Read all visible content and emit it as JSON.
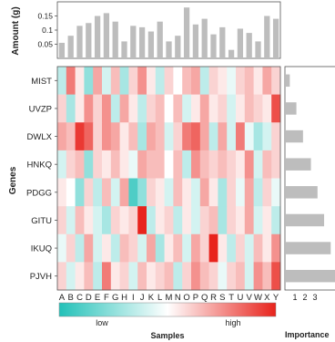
{
  "chart_data": [
    {
      "type": "bar",
      "panel": "top",
      "ylabel": "Amount (g)",
      "ylim": [
        0,
        0.2
      ],
      "yticks": [
        0.05,
        0.1,
        0.15
      ],
      "ytick_labels": [
        "0.05",
        "0.1",
        "0.15"
      ],
      "categories": [
        "A",
        "B",
        "C",
        "D",
        "E",
        "F",
        "G",
        "H",
        "I",
        "J",
        "K",
        "L",
        "M",
        "N",
        "O",
        "P",
        "Q",
        "R",
        "S",
        "T",
        "U",
        "V",
        "W",
        "X",
        "Y"
      ],
      "values": [
        0.055,
        0.08,
        0.115,
        0.125,
        0.15,
        0.16,
        0.13,
        0.06,
        0.115,
        0.11,
        0.095,
        0.13,
        0.06,
        0.08,
        0.18,
        0.12,
        0.14,
        0.085,
        0.11,
        0.03,
        0.105,
        0.09,
        0.06,
        0.15,
        0.14
      ],
      "bar_color": "#bdbdbd"
    },
    {
      "type": "heatmap",
      "panel": "main",
      "xlabel": "Samples",
      "ylabel": "Genes",
      "columns": [
        "A",
        "B",
        "C",
        "D",
        "E",
        "F",
        "G",
        "H",
        "I",
        "J",
        "K",
        "L",
        "M",
        "N",
        "O",
        "P",
        "Q",
        "R",
        "S",
        "T",
        "U",
        "V",
        "W",
        "X",
        "Y"
      ],
      "rows": [
        "MIST",
        "UVZP",
        "DWLX",
        "HNKQ",
        "PDGG",
        "GITU",
        "IKUQ",
        "PJVH"
      ],
      "colorbar": {
        "low_label": "low",
        "high_label": "high",
        "low_color": "#22c1b8",
        "mid_color": "#ffffff",
        "high_color": "#e8231c"
      },
      "values": [
        [
          -0.3,
          0.6,
          0.1,
          -0.5,
          0.4,
          -0.2,
          0.3,
          -0.4,
          0.2,
          0.5,
          0.1,
          -0.3,
          0.2,
          0.0,
          0.3,
          0.4,
          -0.3,
          0.2,
          0.1,
          -0.1,
          0.2,
          0.3,
          0.1,
          0.4,
          0.2
        ],
        [
          0.2,
          -0.4,
          0.1,
          0.5,
          0.2,
          0.5,
          -0.3,
          0.4,
          0.1,
          -0.3,
          0.2,
          0.3,
          0.0,
          0.3,
          -0.2,
          0.1,
          0.4,
          0.1,
          0.2,
          -0.2,
          0.1,
          0.3,
          0.2,
          0.1,
          0.8
        ],
        [
          0.4,
          0.3,
          0.9,
          0.7,
          0.2,
          0.5,
          0.4,
          0.1,
          0.3,
          -0.4,
          0.4,
          0.3,
          -0.2,
          0.2,
          0.6,
          0.7,
          0.4,
          -0.3,
          0.4,
          -0.2,
          0.6,
          -0.1,
          -0.4,
          -0.2,
          0.2
        ],
        [
          -0.2,
          0.2,
          0.3,
          -0.5,
          0.2,
          0.1,
          0.3,
          0.1,
          -0.1,
          0.4,
          0.3,
          0.3,
          0.0,
          0.3,
          -0.3,
          0.5,
          0.3,
          0.2,
          0.3,
          0.2,
          0.1,
          0.5,
          -0.2,
          0.3,
          0.2
        ],
        [
          0.1,
          0.0,
          -0.5,
          0.2,
          -0.3,
          0.3,
          -0.2,
          0.4,
          -0.8,
          -0.5,
          0.2,
          0.1,
          -0.2,
          0.3,
          0.1,
          -0.2,
          0.4,
          0.1,
          -0.4,
          0.2,
          -0.1,
          0.4,
          -0.3,
          0.2,
          -0.1
        ],
        [
          0.2,
          -0.2,
          0.3,
          0.1,
          -0.2,
          -0.4,
          0.2,
          0.1,
          0.2,
          1.0,
          -0.3,
          0.1,
          0.2,
          -0.3,
          0.1,
          -0.2,
          0.2,
          0.3,
          -0.4,
          0.2,
          0.1,
          0.4,
          -0.2,
          0.1,
          -0.3
        ],
        [
          -0.1,
          0.2,
          -0.3,
          0.4,
          -0.2,
          0.1,
          -0.3,
          0.3,
          0.2,
          -0.2,
          0.4,
          -0.4,
          0.1,
          0.3,
          -0.2,
          0.4,
          0.2,
          1.0,
          0.1,
          -0.3,
          0.2,
          -0.2,
          0.3,
          0.1,
          0.5
        ],
        [
          0.2,
          -0.2,
          0.1,
          0.3,
          -0.3,
          0.6,
          0.1,
          0.2,
          -0.2,
          0.3,
          0.1,
          0.2,
          0.3,
          -0.3,
          0.2,
          0.5,
          0.3,
          0.2,
          -0.1,
          0.2,
          0.3,
          -0.2,
          0.5,
          0.3,
          0.8
        ]
      ]
    },
    {
      "type": "bar",
      "panel": "right",
      "orientation": "horizontal",
      "xlabel": "Importance",
      "xticks": [
        1,
        2,
        3
      ],
      "xtick_labels": [
        "1",
        "2",
        "3"
      ],
      "xlim": [
        0,
        3.4
      ],
      "categories": [
        "MIST",
        "UVZP",
        "DWLX",
        "HNKQ",
        "PDGG",
        "GITU",
        "IKUQ",
        "PJVH"
      ],
      "values": [
        0.3,
        0.8,
        1.3,
        1.9,
        2.4,
        2.9,
        3.4,
        3.9
      ],
      "bar_color": "#bdbdbd"
    }
  ]
}
